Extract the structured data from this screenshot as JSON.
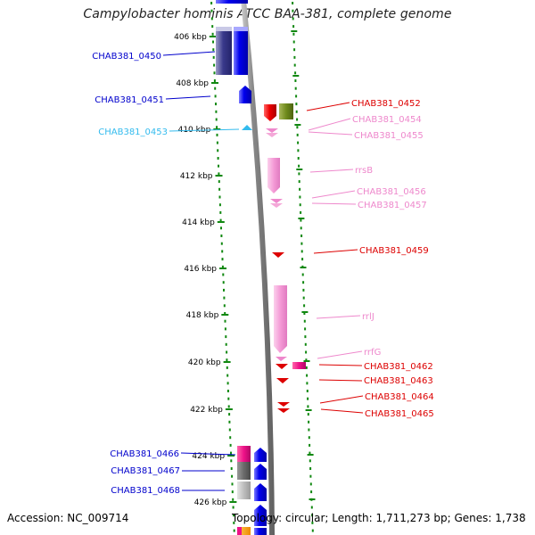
{
  "title": "Campylobacter hominis ATCC BAA-381, complete genome",
  "footer": {
    "accession": "Accession: NC_009714",
    "summary": "Topology: circular; Length: 1,711,273 bp; Genes: 1,738"
  },
  "scale_labels": [
    "406 kbp",
    "408 kbp",
    "410 kbp",
    "412 kbp",
    "414 kbp",
    "416 kbp",
    "418 kbp",
    "420 kbp",
    "422 kbp",
    "424 kbp",
    "426 kbp"
  ],
  "left_labels": [
    {
      "text": "CHAB381_0450",
      "color": "#0000cc"
    },
    {
      "text": "CHAB381_0451",
      "color": "#0000cc"
    },
    {
      "text": "CHAB381_0453",
      "color": "#33bbee"
    },
    {
      "text": "CHAB381_0466",
      "color": "#0000cc"
    },
    {
      "text": "CHAB381_0467",
      "color": "#0000cc"
    },
    {
      "text": "CHAB381_0468",
      "color": "#0000cc"
    }
  ],
  "right_labels": [
    {
      "text": "CHAB381_0452",
      "color": "#dd0000"
    },
    {
      "text": "CHAB381_0454",
      "color": "#ee88cc"
    },
    {
      "text": "CHAB381_0455",
      "color": "#ee88cc"
    },
    {
      "text": "rrsB",
      "color": "#ee88cc"
    },
    {
      "text": "CHAB381_0456",
      "color": "#ee88cc"
    },
    {
      "text": "CHAB381_0457",
      "color": "#ee88cc"
    },
    {
      "text": "CHAB381_0459",
      "color": "#dd0000"
    },
    {
      "text": "rrlJ",
      "color": "#ee88cc"
    },
    {
      "text": "rrfG",
      "color": "#ee88cc"
    },
    {
      "text": "CHAB381_0462",
      "color": "#dd0000"
    },
    {
      "text": "CHAB381_0463",
      "color": "#dd0000"
    },
    {
      "text": "CHAB381_0464",
      "color": "#dd0000"
    },
    {
      "text": "CHAB381_0465",
      "color": "#dd0000"
    }
  ],
  "colors": {
    "backbone_gray": "#888888",
    "tick_green": "#118811",
    "forward_gene": "#0000ee",
    "reverse_gene": "#dd0000",
    "rna_gene": "#ee88cc"
  }
}
